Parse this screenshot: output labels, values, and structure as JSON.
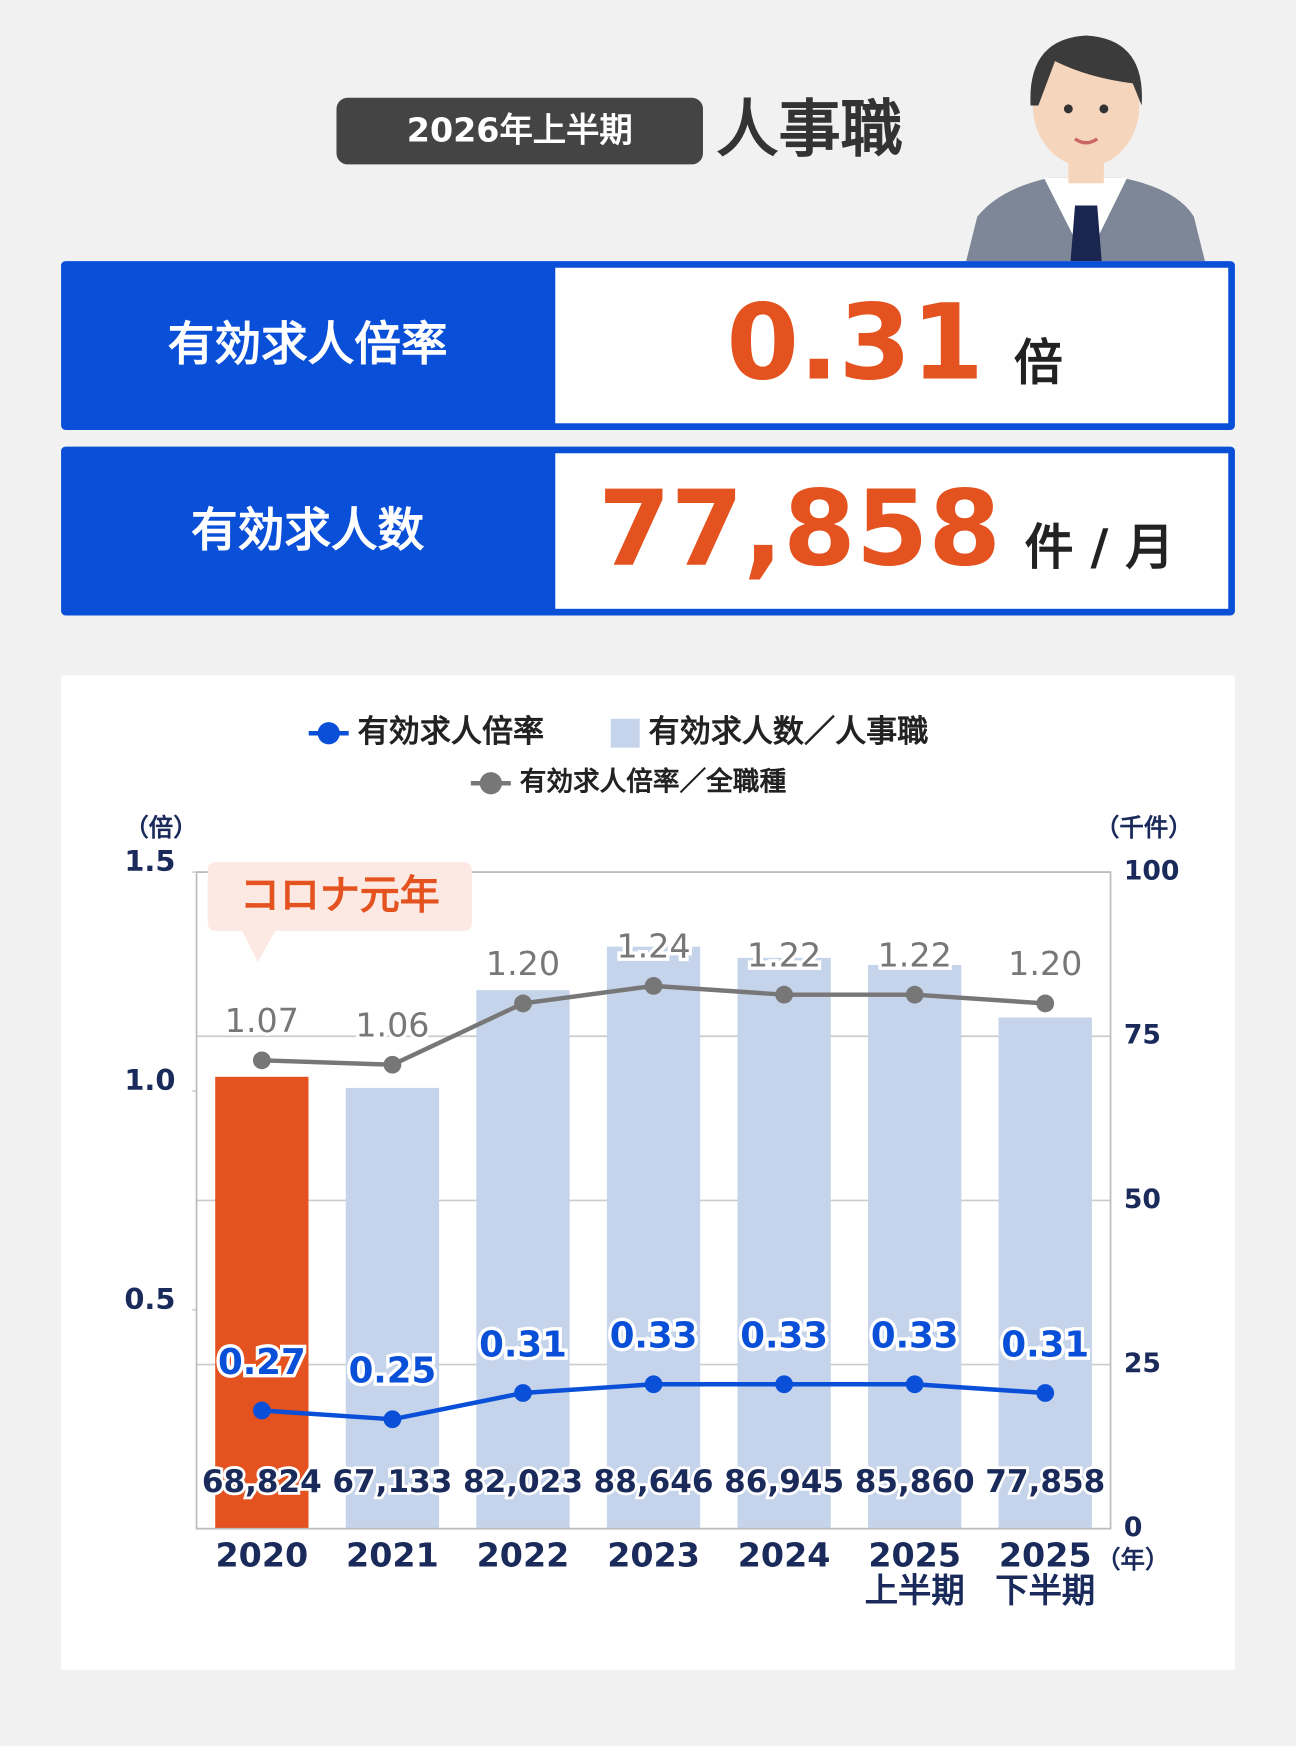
{
  "header": {
    "badge": "2026年上半期",
    "title": "人事職"
  },
  "stats": [
    {
      "label": "有効求人倍率",
      "value": "0.31",
      "unit": "倍"
    },
    {
      "label": "有効求人数",
      "value": "77,858",
      "unit": "件 / 月"
    }
  ],
  "chart_data": {
    "type": "combo",
    "annotation": "コロナ元年",
    "y_unit": "（倍）",
    "y2_unit": "（千件）",
    "x_unit": "（年）",
    "categories": [
      "2020",
      "2021",
      "2022",
      "2023",
      "2024",
      "2025\n上半期",
      "2025\n下半期"
    ],
    "ylim": [
      0,
      1.5
    ],
    "yticks": [
      0.5,
      {
        "value": 1,
        "label": "1.0"
      },
      1.5
    ],
    "y2lim": [
      0,
      100
    ],
    "y2ticks": [
      0,
      25,
      50,
      75,
      100
    ],
    "grid": true,
    "series": [
      {
        "name": "有効求人数／人事職",
        "type": "bar",
        "axis": "y2",
        "color": "#c5d3eb",
        "colors": [
          "#e4521f",
          "#c5d3eb",
          "#c5d3eb",
          "#c5d3eb",
          "#c5d3eb",
          "#c5d3eb",
          "#c5d3eb"
        ],
        "values": [
          68.824,
          67.133,
          82.023,
          88.646,
          86.945,
          85.86,
          77.858
        ],
        "value_labels": [
          "68,824",
          "67,133",
          "82,023",
          "88,646",
          "86,945",
          "85,860",
          "77,858"
        ]
      },
      {
        "name": "有効求人倍率",
        "type": "line",
        "color": "#0a4fd8",
        "values": [
          0.27,
          0.25,
          0.31,
          0.33,
          0.33,
          0.33,
          0.31
        ]
      },
      {
        "name": "有効求人倍率／全職種",
        "type": "line",
        "color": "#777777",
        "values": [
          1.07,
          1.06,
          1.2,
          1.24,
          1.22,
          1.22,
          1.2
        ],
        "value_labels": [
          "1.07",
          "1.06",
          "1.20",
          "1.24",
          "1.22",
          "1.22",
          "1.20"
        ]
      }
    ]
  }
}
